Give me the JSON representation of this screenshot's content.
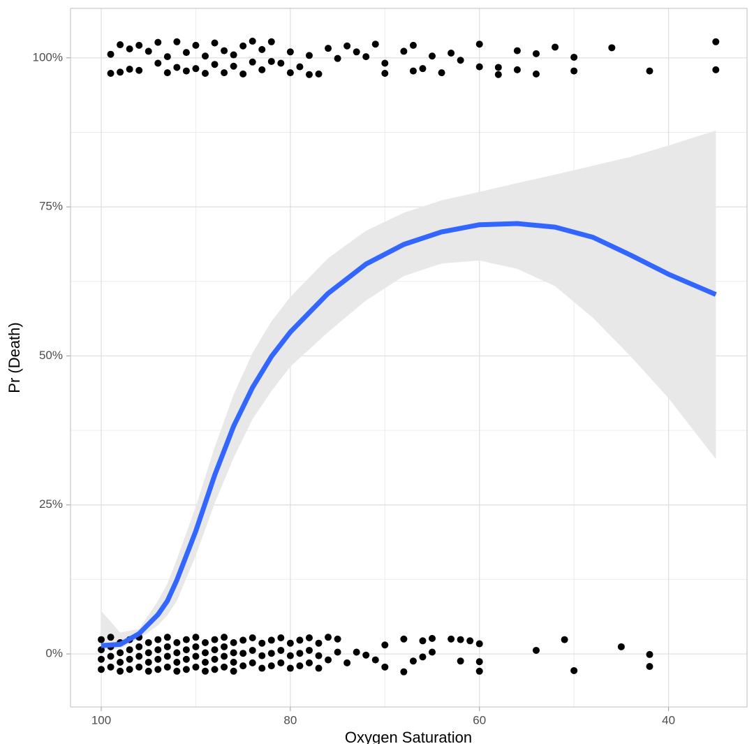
{
  "chart_data": {
    "type": "scatter",
    "x_label": "Oxygen Saturation",
    "y_label": "Pr (Death)",
    "xlim": [
      103.25,
      31.7
    ],
    "ylim": [
      -8.9,
      108.3
    ],
    "xticks": [
      100,
      80,
      60,
      40
    ],
    "x_minor_grid": [
      90,
      70,
      50
    ],
    "yticks": [
      {
        "value": 0,
        "label": "0%"
      },
      {
        "value": 25,
        "label": "25%"
      },
      {
        "value": 50,
        "label": "50%"
      },
      {
        "value": 75,
        "label": "75%"
      },
      {
        "value": 100,
        "label": "100%"
      }
    ],
    "y_minor_grid": [
      12.5,
      37.5,
      62.5,
      87.5
    ],
    "grid": true,
    "points": {
      "color": "#000000",
      "x": [
        99,
        99,
        98,
        98,
        97,
        97,
        96,
        96,
        95,
        94,
        94,
        93,
        93,
        92,
        92,
        91,
        91,
        90,
        90,
        89,
        89,
        88,
        88,
        87,
        87,
        86,
        86,
        85,
        85,
        84,
        84,
        83,
        83,
        82,
        82,
        81,
        80,
        80,
        79,
        78,
        78,
        77,
        76,
        75,
        74,
        73,
        72,
        71,
        70,
        70,
        68,
        67,
        67,
        66,
        65,
        64,
        63,
        62,
        60,
        60,
        58,
        58,
        56,
        56,
        54,
        54,
        52,
        50,
        50,
        46,
        42,
        35,
        35,
        100,
        100,
        100,
        100,
        99,
        99,
        99,
        99,
        98,
        98,
        98,
        98,
        97,
        97,
        97,
        97,
        96,
        96,
        96,
        96,
        95,
        95,
        95,
        95,
        94,
        94,
        94,
        94,
        93,
        93,
        93,
        93,
        92,
        92,
        92,
        92,
        91,
        91,
        91,
        91,
        90,
        90,
        90,
        90,
        89,
        89,
        89,
        89,
        88,
        88,
        88,
        88,
        87,
        87,
        87,
        87,
        86,
        86,
        86,
        86,
        85,
        85,
        85,
        84,
        84,
        84,
        83,
        83,
        83,
        82,
        82,
        82,
        81,
        81,
        81,
        80,
        80,
        80,
        79,
        79,
        79,
        78,
        78,
        78,
        77,
        77,
        77,
        76,
        76,
        75,
        75,
        74,
        73,
        72,
        71,
        70,
        70,
        68,
        68,
        67,
        66,
        66,
        65,
        65,
        63,
        62,
        62,
        61,
        60,
        60,
        60,
        54,
        51,
        50,
        45,
        42,
        42
      ],
      "y": [
        97.4,
        100.6,
        97.6,
        102.2,
        98.1,
        101.5,
        97.9,
        102.1,
        101.1,
        99.1,
        102.6,
        97.5,
        100.2,
        98.4,
        102.7,
        97.8,
        100.9,
        98.2,
        102.1,
        97.4,
        100.3,
        98.9,
        102.5,
        97.5,
        101.2,
        98.6,
        100.5,
        97.3,
        102.0,
        99.3,
        102.8,
        98.0,
        101.4,
        99.4,
        102.7,
        99.1,
        97.5,
        101.0,
        98.5,
        97.2,
        100.4,
        97.3,
        101.6,
        99.9,
        102.0,
        101.0,
        100.2,
        102.3,
        97.4,
        99.1,
        101.1,
        97.8,
        102.1,
        98.2,
        100.3,
        97.5,
        100.8,
        99.6,
        98.5,
        102.3,
        98.4,
        97.2,
        98.0,
        101.2,
        97.3,
        100.7,
        101.8,
        97.8,
        100.1,
        101.7,
        97.8,
        98.0,
        102.7,
        -2.6,
        -0.9,
        0.7,
        2.4,
        -2.2,
        -0.4,
        1.2,
        2.8,
        -2.9,
        -1.4,
        0.2,
        1.9,
        -2.6,
        -0.9,
        0.7,
        2.4,
        -2.2,
        -0.4,
        1.2,
        2.8,
        -2.9,
        -1.4,
        0.2,
        1.9,
        -2.6,
        -0.9,
        0.7,
        2.4,
        -2.2,
        -0.4,
        1.2,
        2.8,
        -2.9,
        -1.4,
        0.2,
        1.9,
        -2.6,
        -0.9,
        0.7,
        2.4,
        -2.2,
        -0.4,
        1.2,
        2.8,
        -2.9,
        -1.4,
        0.2,
        1.9,
        -2.6,
        -0.9,
        0.7,
        2.4,
        -2.2,
        -0.4,
        1.2,
        2.8,
        -2.9,
        -1.4,
        0.2,
        1.9,
        -2.0,
        0.1,
        2.3,
        -1.5,
        0.6,
        2.7,
        -2.4,
        -0.3,
        1.8,
        -2.0,
        0.1,
        2.3,
        -1.5,
        0.6,
        2.7,
        -2.4,
        -0.3,
        1.8,
        -2.0,
        0.1,
        2.3,
        -1.5,
        0.6,
        2.7,
        -2.4,
        -0.3,
        1.8,
        -1.0,
        2.8,
        0.3,
        2.5,
        -1.5,
        0.3,
        -0.2,
        -1.0,
        -2.2,
        1.5,
        -3.0,
        2.5,
        -1.2,
        -0.5,
        2.2,
        0.3,
        2.6,
        2.5,
        -1.2,
        2.4,
        2.2,
        -1.3,
        -2.9,
        1.7,
        0.6,
        2.4,
        -2.8,
        1.2,
        -0.1,
        -2.1
      ]
    },
    "smooth": {
      "type": "line",
      "color": "#3366ff",
      "band_color": "#e8e8e8",
      "x": [
        100,
        98,
        96,
        94,
        93,
        92,
        90,
        88,
        86,
        84,
        82,
        80,
        76,
        72,
        68,
        64,
        60,
        56,
        52,
        48,
        44,
        40,
        35
      ],
      "y": [
        1.4,
        1.6,
        3.4,
        6.6,
        8.9,
        12.4,
        20.6,
        30,
        38.2,
        44.7,
        49.9,
        54,
        60.5,
        65.4,
        68.7,
        70.8,
        72,
        72.2,
        71.6,
        69.9,
        66.9,
        63.7,
        60.3
      ],
      "lower": [
        0.7,
        0.9,
        2.5,
        4.8,
        6.5,
        8.9,
        16.5,
        25.3,
        32.9,
        39.4,
        44.1,
        48.2,
        54,
        59.3,
        63.4,
        65.5,
        66,
        64.6,
        61.7,
        56.4,
        49.9,
        42.9,
        32.7
      ],
      "upper": [
        7.2,
        3.6,
        4.2,
        8.9,
        11.8,
        15.9,
        24.7,
        34.7,
        43.5,
        50.5,
        55.8,
        59.9,
        66.4,
        71,
        74,
        76.1,
        77.5,
        79,
        80.4,
        81.9,
        83.4,
        85.3,
        87.8
      ]
    }
  }
}
